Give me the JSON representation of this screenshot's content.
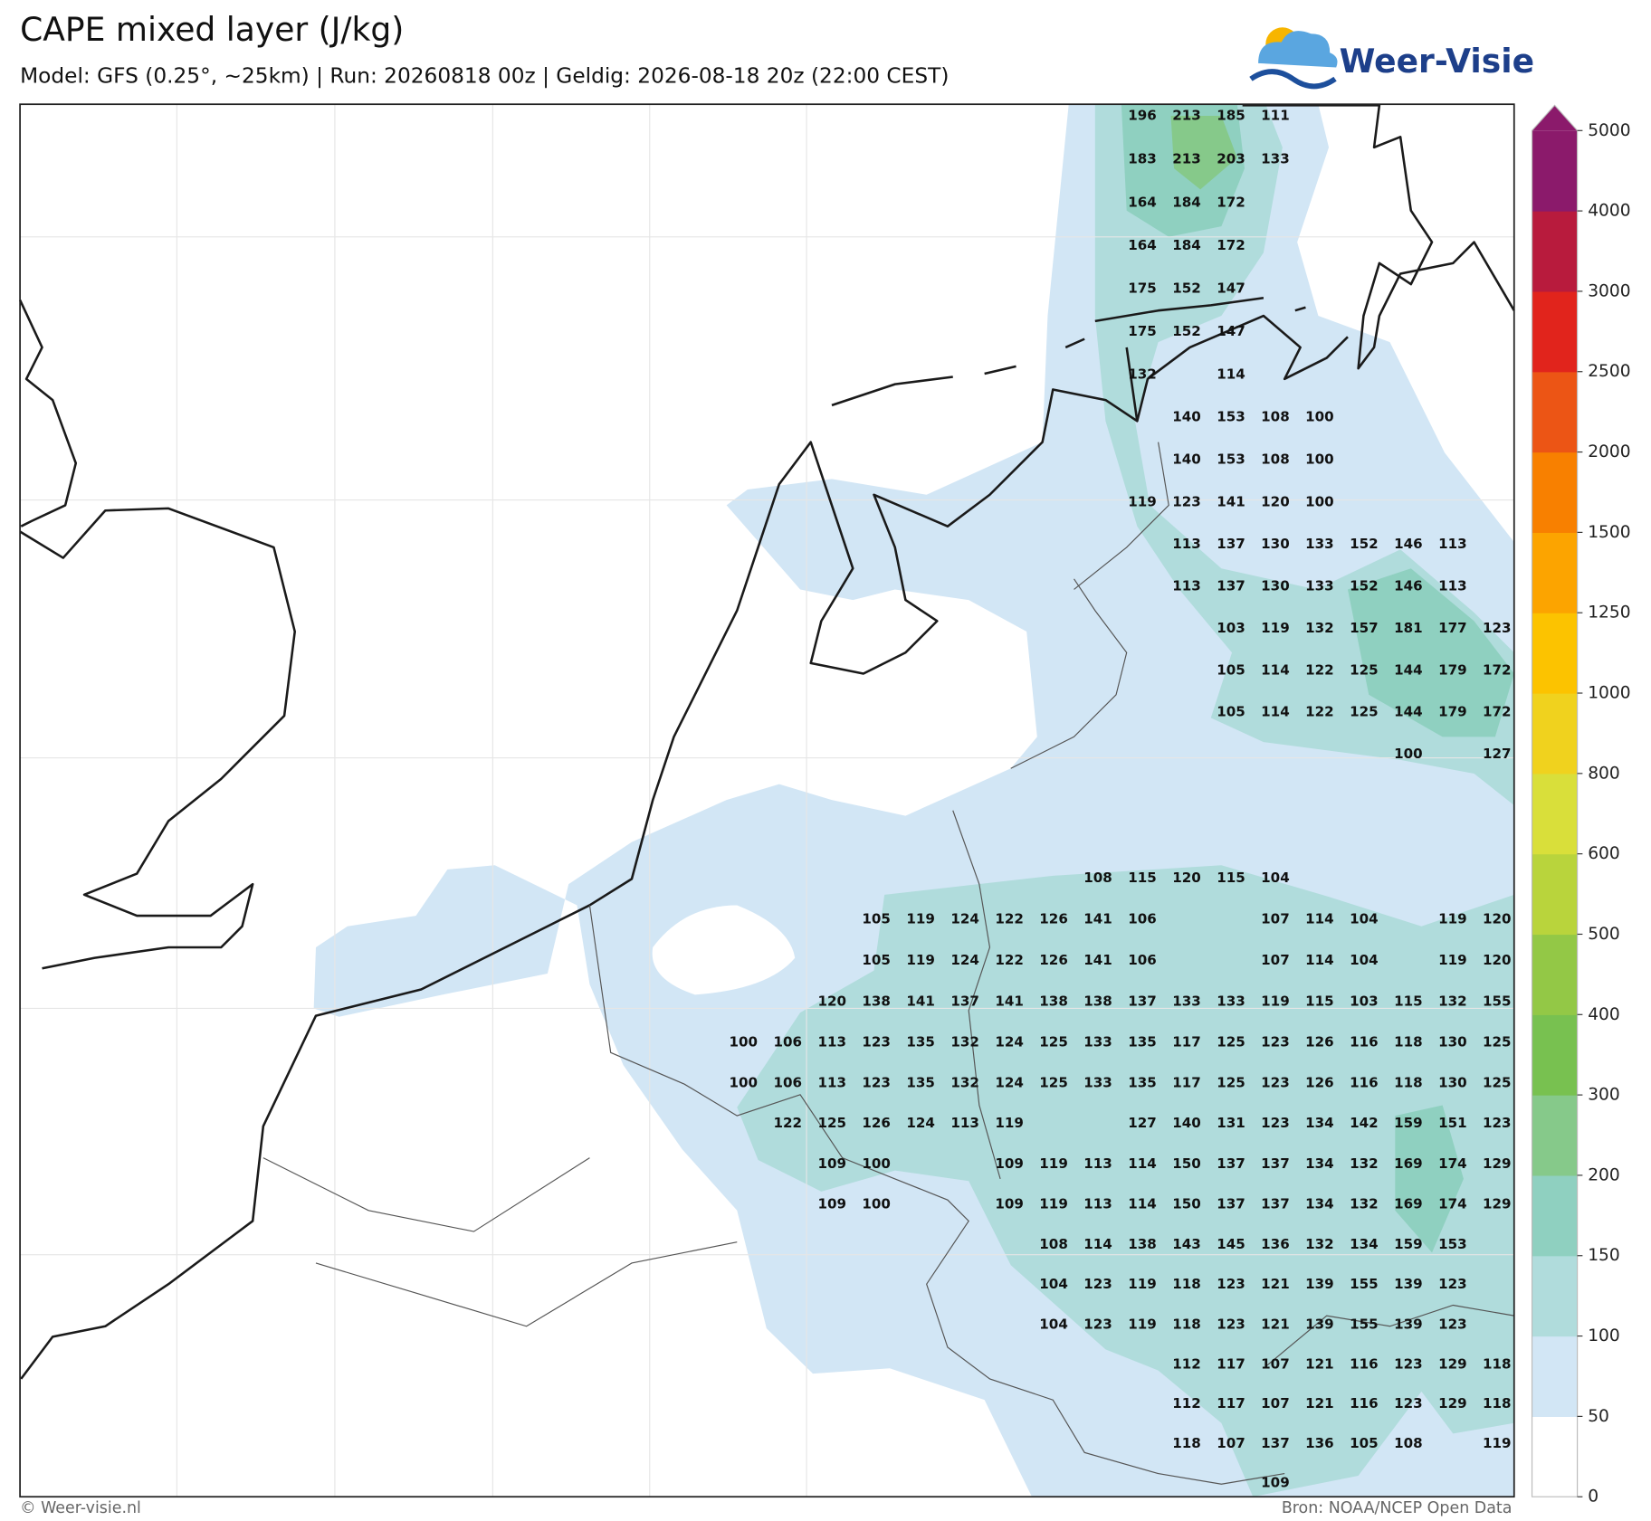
{
  "header": {
    "title": "CAPE mixed layer (J/kg)",
    "subtitle": "Model: GFS (0.25°, ~25km)  |  Run: 20260818 00z  |  Geldig: 2026-08-18 20z (22:00 CEST)",
    "logo": "Weer-Visie"
  },
  "map": {
    "grid": {
      "rows": [
        [
          null,
          null,
          null,
          null,
          null,
          null,
          null,
          null,
          null,
          196,
          213,
          185,
          111,
          null,
          null,
          null,
          null,
          null
        ],
        [
          null,
          null,
          null,
          null,
          null,
          null,
          null,
          null,
          null,
          183,
          213,
          203,
          133,
          null,
          null,
          null,
          null,
          null
        ],
        [
          null,
          null,
          null,
          null,
          null,
          null,
          null,
          null,
          null,
          164,
          184,
          172,
          null,
          null,
          null,
          null,
          null,
          null
        ],
        [
          null,
          null,
          null,
          null,
          null,
          null,
          null,
          null,
          null,
          164,
          184,
          172,
          null,
          null,
          null,
          null,
          null,
          null
        ],
        [
          null,
          null,
          null,
          null,
          null,
          null,
          null,
          null,
          null,
          175,
          152,
          147,
          null,
          null,
          null,
          null,
          null,
          null
        ],
        [
          null,
          null,
          null,
          null,
          null,
          null,
          null,
          null,
          null,
          175,
          152,
          147,
          null,
          null,
          null,
          null,
          null,
          null
        ],
        [
          null,
          null,
          null,
          null,
          null,
          null,
          null,
          null,
          null,
          132,
          null,
          114,
          null,
          null,
          null,
          null,
          null,
          null
        ],
        [
          null,
          null,
          null,
          null,
          null,
          null,
          null,
          null,
          null,
          null,
          140,
          153,
          108,
          100,
          null,
          null,
          null,
          null
        ],
        [
          null,
          null,
          null,
          null,
          null,
          null,
          null,
          null,
          null,
          null,
          140,
          153,
          108,
          100,
          null,
          null,
          null,
          null
        ],
        [
          null,
          null,
          null,
          null,
          null,
          null,
          null,
          null,
          null,
          119,
          123,
          141,
          120,
          100,
          null,
          null,
          null,
          null
        ],
        [
          null,
          null,
          null,
          null,
          null,
          null,
          null,
          null,
          null,
          null,
          113,
          137,
          130,
          133,
          152,
          146,
          113,
          null
        ],
        [
          null,
          null,
          null,
          null,
          null,
          null,
          null,
          null,
          null,
          null,
          113,
          137,
          130,
          133,
          152,
          146,
          113,
          null
        ],
        [
          null,
          null,
          null,
          null,
          null,
          null,
          null,
          null,
          null,
          null,
          null,
          103,
          119,
          132,
          157,
          181,
          177,
          123
        ],
        [
          null,
          null,
          null,
          null,
          null,
          null,
          null,
          null,
          null,
          null,
          null,
          105,
          114,
          122,
          125,
          144,
          179,
          172
        ],
        [
          null,
          null,
          null,
          null,
          null,
          null,
          null,
          null,
          null,
          null,
          null,
          105,
          114,
          122,
          125,
          144,
          179,
          172
        ],
        [
          null,
          null,
          null,
          null,
          null,
          null,
          null,
          null,
          null,
          null,
          null,
          null,
          null,
          null,
          null,
          100,
          null,
          127
        ],
        [
          null,
          null,
          null,
          null,
          null,
          null,
          null,
          null,
          null,
          null,
          null,
          null,
          null,
          null,
          null,
          null,
          null,
          null
        ],
        [
          null,
          null,
          null,
          null,
          null,
          null,
          null,
          null,
          null,
          null,
          null,
          null,
          null,
          null,
          null,
          null,
          null,
          null
        ],
        [
          null,
          null,
          null,
          null,
          null,
          null,
          null,
          null,
          108,
          115,
          120,
          115,
          104,
          null,
          null,
          null,
          null,
          null
        ],
        [
          null,
          null,
          null,
          105,
          119,
          124,
          122,
          126,
          141,
          106,
          null,
          null,
          107,
          114,
          104,
          null,
          119,
          120
        ],
        [
          null,
          null,
          null,
          105,
          119,
          124,
          122,
          126,
          141,
          106,
          null,
          null,
          107,
          114,
          104,
          null,
          119,
          120
        ],
        [
          null,
          null,
          120,
          138,
          141,
          137,
          141,
          138,
          138,
          137,
          133,
          133,
          119,
          115,
          103,
          115,
          132,
          155
        ],
        [
          100,
          106,
          113,
          123,
          135,
          132,
          124,
          125,
          133,
          135,
          117,
          125,
          123,
          126,
          116,
          118,
          130,
          125
        ],
        [
          100,
          106,
          113,
          123,
          135,
          132,
          124,
          125,
          133,
          135,
          117,
          125,
          123,
          126,
          116,
          118,
          130,
          125
        ],
        [
          null,
          122,
          125,
          126,
          124,
          113,
          119,
          null,
          null,
          127,
          140,
          131,
          123,
          134,
          142,
          159,
          151,
          123
        ],
        [
          null,
          null,
          109,
          100,
          null,
          null,
          109,
          119,
          113,
          114,
          150,
          137,
          137,
          134,
          132,
          169,
          174,
          129
        ],
        [
          null,
          null,
          109,
          100,
          null,
          null,
          109,
          119,
          113,
          114,
          150,
          137,
          137,
          134,
          132,
          169,
          174,
          129
        ],
        [
          null,
          null,
          null,
          null,
          null,
          null,
          null,
          108,
          114,
          138,
          143,
          145,
          136,
          132,
          134,
          159,
          153,
          null
        ],
        [
          null,
          null,
          null,
          null,
          null,
          null,
          null,
          104,
          123,
          119,
          118,
          123,
          121,
          139,
          155,
          139,
          123,
          null
        ],
        [
          null,
          null,
          null,
          null,
          null,
          null,
          null,
          104,
          123,
          119,
          118,
          123,
          121,
          139,
          155,
          139,
          123,
          null
        ],
        [
          null,
          null,
          null,
          null,
          null,
          null,
          null,
          null,
          null,
          null,
          112,
          117,
          107,
          121,
          116,
          123,
          129,
          118
        ],
        [
          null,
          null,
          null,
          null,
          null,
          null,
          null,
          null,
          null,
          null,
          112,
          117,
          107,
          121,
          116,
          123,
          129,
          118
        ],
        [
          null,
          null,
          null,
          null,
          null,
          null,
          null,
          null,
          null,
          null,
          118,
          107,
          137,
          136,
          105,
          108,
          null,
          119
        ],
        [
          null,
          null,
          null,
          null,
          null,
          null,
          null,
          null,
          null,
          null,
          null,
          null,
          109,
          null,
          null,
          null,
          null,
          null
        ]
      ]
    }
  },
  "colorbar": {
    "ticks": [
      0,
      50,
      100,
      150,
      200,
      300,
      400,
      500,
      600,
      800,
      1000,
      1250,
      1500,
      2000,
      2500,
      3000,
      4000,
      5000
    ],
    "colors": [
      "#ffffff",
      "#d2e6f5",
      "#b0dcdc",
      "#8fd0c0",
      "#86c98a",
      "#78c150",
      "#93c846",
      "#b9d43c",
      "#d9df3a",
      "#f0d21e",
      "#fcc300",
      "#fca400",
      "#f88000",
      "#ec5515",
      "#e1241c",
      "#b81b3d",
      "#8b1a6b"
    ],
    "extend_color": "#8b1a6b"
  },
  "footer": {
    "left": "© Weer-visie.nl",
    "right": "Bron: NOAA/NCEP Open Data"
  }
}
